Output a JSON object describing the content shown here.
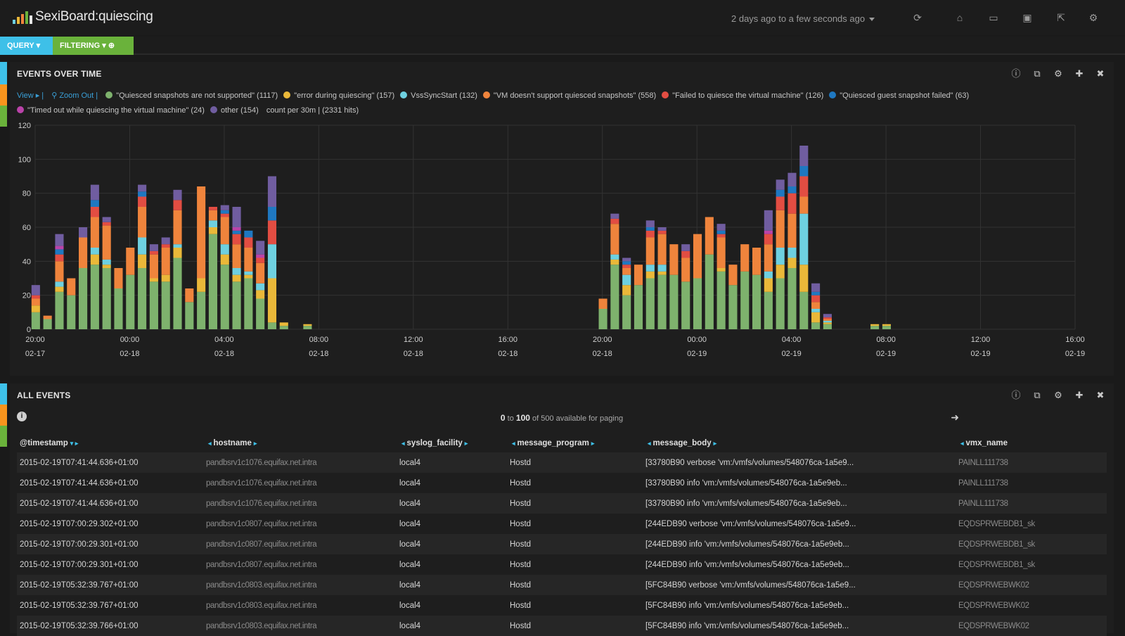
{
  "app": {
    "title": "SexiBoard:quiescing",
    "timerange": "2 days ago to a few seconds ago"
  },
  "nav_icons": [
    "refresh-icon",
    "home-icon",
    "folder-icon",
    "save-icon",
    "share-icon",
    "gear-icon"
  ],
  "pills": {
    "query": "QUERY",
    "filtering": "FILTERING"
  },
  "events_panel": {
    "title": "EVENTS OVER TIME",
    "view_link": "View ▸ |",
    "zoom_link": "Zoom Out |",
    "legend": [
      {
        "label": "\"Quiesced snapshots are not supported\" (1117)",
        "color": "#7eb26d"
      },
      {
        "label": "\"error during quiescing\" (157)",
        "color": "#eab839"
      },
      {
        "label": "VssSyncStart (132)",
        "color": "#6ed0e0"
      },
      {
        "label": "\"VM doesn't support quiesced snapshots\" (558)",
        "color": "#ef843c"
      },
      {
        "label": "\"Failed to quiesce the virtual machine\" (126)",
        "color": "#e24d42"
      },
      {
        "label": "\"Quiesced guest snapshot failed\" (63)",
        "color": "#1f78c1"
      },
      {
        "label": "\"Timed out while quiescing the virtual machine\" (24)",
        "color": "#ba43a9"
      },
      {
        "label": "other (154)",
        "color": "#705da0"
      }
    ],
    "summary": "count per 30m | (2331 hits)"
  },
  "chart_data": {
    "type": "bar",
    "stacked": true,
    "ylim": [
      0,
      120
    ],
    "yticks": [
      0,
      20,
      40,
      60,
      80,
      100,
      120
    ],
    "x_ticks": [
      {
        "time": "20:00",
        "date": "02-17"
      },
      {
        "time": "00:00",
        "date": "02-18"
      },
      {
        "time": "04:00",
        "date": "02-18"
      },
      {
        "time": "08:00",
        "date": "02-18"
      },
      {
        "time": "12:00",
        "date": "02-18"
      },
      {
        "time": "16:00",
        "date": "02-18"
      },
      {
        "time": "20:00",
        "date": "02-18"
      },
      {
        "time": "00:00",
        "date": "02-19"
      },
      {
        "time": "04:00",
        "date": "02-19"
      },
      {
        "time": "08:00",
        "date": "02-19"
      },
      {
        "time": "12:00",
        "date": "02-19"
      },
      {
        "time": "16:00",
        "date": "02-19"
      }
    ],
    "x_start": "2015-02-17T20:00",
    "x_end": "2015-02-19T16:00",
    "grid": true,
    "series_order": [
      "Quiesced snapshots are not supported",
      "error during quiescing",
      "VssSyncStart",
      "VM doesn't support quiesced snapshots",
      "Failed to quiesce the virtual machine",
      "Quiesced guest snapshot failed",
      "Timed out while quiescing the virtual machine",
      "other"
    ],
    "bars": [
      {
        "t": "2015-02-17T20:00",
        "v": [
          10,
          4,
          0,
          4,
          2,
          0,
          0,
          6
        ]
      },
      {
        "t": "2015-02-17T20:30",
        "v": [
          6,
          0,
          0,
          2,
          0,
          0,
          0,
          0
        ]
      },
      {
        "t": "2015-02-17T21:00",
        "v": [
          22,
          3,
          3,
          12,
          4,
          3,
          2,
          7
        ]
      },
      {
        "t": "2015-02-17T21:30",
        "v": [
          20,
          0,
          0,
          10,
          0,
          0,
          0,
          0
        ]
      },
      {
        "t": "2015-02-17T22:00",
        "v": [
          36,
          0,
          0,
          18,
          0,
          0,
          0,
          6
        ]
      },
      {
        "t": "2015-02-17T22:30",
        "v": [
          38,
          6,
          4,
          18,
          6,
          4,
          0,
          9
        ]
      },
      {
        "t": "2015-02-17T23:00",
        "v": [
          36,
          2,
          3,
          20,
          2,
          0,
          0,
          3
        ]
      },
      {
        "t": "2015-02-17T23:30",
        "v": [
          24,
          0,
          0,
          12,
          0,
          0,
          0,
          0
        ]
      },
      {
        "t": "2015-02-18T00:00",
        "v": [
          32,
          0,
          0,
          16,
          0,
          0,
          0,
          0
        ]
      },
      {
        "t": "2015-02-18T00:30",
        "v": [
          36,
          8,
          10,
          18,
          6,
          3,
          0,
          4
        ]
      },
      {
        "t": "2015-02-18T01:00",
        "v": [
          28,
          2,
          0,
          14,
          2,
          0,
          0,
          4
        ]
      },
      {
        "t": "2015-02-18T01:30",
        "v": [
          28,
          4,
          0,
          16,
          2,
          0,
          0,
          4
        ]
      },
      {
        "t": "2015-02-18T02:00",
        "v": [
          42,
          6,
          2,
          20,
          6,
          0,
          0,
          6
        ]
      },
      {
        "t": "2015-02-18T02:30",
        "v": [
          16,
          0,
          0,
          8,
          0,
          0,
          0,
          0
        ]
      },
      {
        "t": "2015-02-18T03:00",
        "v": [
          22,
          8,
          0,
          54,
          0,
          0,
          0,
          0
        ]
      },
      {
        "t": "2015-02-18T03:30",
        "v": [
          56,
          4,
          4,
          6,
          2,
          0,
          0,
          0
        ]
      },
      {
        "t": "2015-02-18T04:00",
        "v": [
          38,
          6,
          6,
          16,
          2,
          2,
          0,
          3
        ]
      },
      {
        "t": "2015-02-18T04:30",
        "v": [
          28,
          4,
          4,
          14,
          6,
          2,
          2,
          12
        ]
      },
      {
        "t": "2015-02-18T05:00",
        "v": [
          30,
          2,
          2,
          14,
          6,
          4,
          0,
          0
        ]
      },
      {
        "t": "2015-02-18T05:30",
        "v": [
          18,
          5,
          4,
          12,
          3,
          0,
          2,
          8
        ]
      },
      {
        "t": "2015-02-18T06:00",
        "v": [
          4,
          26,
          20,
          0,
          14,
          8,
          0,
          18
        ]
      },
      {
        "t": "2015-02-18T06:30",
        "v": [
          2,
          2,
          0,
          0,
          0,
          0,
          0,
          0
        ]
      },
      {
        "t": "2015-02-18T07:30",
        "v": [
          2,
          1,
          0,
          0,
          0,
          0,
          0,
          0
        ]
      },
      {
        "t": "2015-02-18T20:00",
        "v": [
          12,
          0,
          0,
          6,
          0,
          0,
          0,
          0
        ]
      },
      {
        "t": "2015-02-18T20:30",
        "v": [
          38,
          3,
          3,
          18,
          3,
          0,
          0,
          3
        ]
      },
      {
        "t": "2015-02-18T21:00",
        "v": [
          20,
          6,
          6,
          4,
          2,
          2,
          0,
          2
        ]
      },
      {
        "t": "2015-02-18T21:30",
        "v": [
          26,
          0,
          0,
          12,
          0,
          0,
          0,
          0
        ]
      },
      {
        "t": "2015-02-18T22:00",
        "v": [
          30,
          4,
          4,
          16,
          4,
          2,
          0,
          4
        ]
      },
      {
        "t": "2015-02-18T22:30",
        "v": [
          32,
          2,
          4,
          18,
          2,
          0,
          0,
          2
        ]
      },
      {
        "t": "2015-02-18T23:00",
        "v": [
          32,
          0,
          0,
          18,
          0,
          0,
          0,
          0
        ]
      },
      {
        "t": "2015-02-18T23:30",
        "v": [
          28,
          0,
          0,
          14,
          4,
          0,
          0,
          4
        ]
      },
      {
        "t": "2015-02-19T00:00",
        "v": [
          30,
          0,
          0,
          26,
          0,
          0,
          0,
          0
        ]
      },
      {
        "t": "2015-02-19T00:30",
        "v": [
          44,
          0,
          0,
          22,
          0,
          0,
          0,
          0
        ]
      },
      {
        "t": "2015-02-19T01:00",
        "v": [
          34,
          2,
          0,
          18,
          2,
          2,
          0,
          4
        ]
      },
      {
        "t": "2015-02-19T01:30",
        "v": [
          26,
          0,
          0,
          12,
          0,
          0,
          0,
          0
        ]
      },
      {
        "t": "2015-02-19T02:00",
        "v": [
          34,
          0,
          0,
          16,
          0,
          0,
          0,
          0
        ]
      },
      {
        "t": "2015-02-19T02:30",
        "v": [
          32,
          0,
          0,
          16,
          0,
          0,
          0,
          0
        ]
      },
      {
        "t": "2015-02-19T03:00",
        "v": [
          22,
          8,
          4,
          16,
          6,
          0,
          2,
          12
        ]
      },
      {
        "t": "2015-02-19T03:30",
        "v": [
          30,
          8,
          10,
          22,
          8,
          4,
          0,
          6
        ]
      },
      {
        "t": "2015-02-19T04:00",
        "v": [
          36,
          6,
          6,
          20,
          12,
          4,
          0,
          8
        ]
      },
      {
        "t": "2015-02-19T04:30",
        "v": [
          22,
          16,
          30,
          10,
          12,
          6,
          0,
          12
        ]
      },
      {
        "t": "2015-02-19T05:00",
        "v": [
          4,
          6,
          2,
          4,
          4,
          2,
          0,
          5
        ]
      },
      {
        "t": "2015-02-19T05:30",
        "v": [
          3,
          1,
          1,
          1,
          1,
          0,
          0,
          2
        ]
      },
      {
        "t": "2015-02-19T07:30",
        "v": [
          2,
          1,
          0,
          0,
          0,
          0,
          0,
          0
        ]
      },
      {
        "t": "2015-02-19T08:00",
        "v": [
          2,
          1,
          0,
          0,
          0,
          0,
          0,
          0
        ]
      }
    ]
  },
  "all_events": {
    "title": "ALL EVENTS",
    "paging": {
      "from": "0",
      "to_word": "to",
      "to": "100",
      "suffix": "of 500 available for paging"
    },
    "columns": [
      "@timestamp",
      "hostname",
      "syslog_facility",
      "message_program",
      "message_body",
      "vmx_name"
    ],
    "rows": [
      [
        "2015-02-19T07:41:44.636+01:00",
        "pandbsrv1c1076.equifax.net.intra",
        "local4",
        "Hostd",
        "[33780B90 verbose 'vm:/vmfs/volumes/548076ca-1a5e9...",
        "PAINLL111738"
      ],
      [
        "2015-02-19T07:41:44.636+01:00",
        "pandbsrv1c1076.equifax.net.intra",
        "local4",
        "Hostd",
        "[33780B90 info 'vm:/vmfs/volumes/548076ca-1a5e9eb...",
        "PAINLL111738"
      ],
      [
        "2015-02-19T07:41:44.636+01:00",
        "pandbsrv1c1076.equifax.net.intra",
        "local4",
        "Hostd",
        "[33780B90 info 'vm:/vmfs/volumes/548076ca-1a5e9eb...",
        "PAINLL111738"
      ],
      [
        "2015-02-19T07:00:29.302+01:00",
        "pandbsrv1c0807.equifax.net.intra",
        "local4",
        "Hostd",
        "[244EDB90 verbose 'vm:/vmfs/volumes/548076ca-1a5e9...",
        "EQDSPRWEBDB1_sk"
      ],
      [
        "2015-02-19T07:00:29.301+01:00",
        "pandbsrv1c0807.equifax.net.intra",
        "local4",
        "Hostd",
        "[244EDB90 info 'vm:/vmfs/volumes/548076ca-1a5e9eb...",
        "EQDSPRWEBDB1_sk"
      ],
      [
        "2015-02-19T07:00:29.301+01:00",
        "pandbsrv1c0807.equifax.net.intra",
        "local4",
        "Hostd",
        "[244EDB90 info 'vm:/vmfs/volumes/548076ca-1a5e9eb...",
        "EQDSPRWEBDB1_sk"
      ],
      [
        "2015-02-19T05:32:39.767+01:00",
        "pandbsrv1c0803.equifax.net.intra",
        "local4",
        "Hostd",
        "[5FC84B90 verbose 'vm:/vmfs/volumes/548076ca-1a5e9...",
        "EQDSPRWEBWK02"
      ],
      [
        "2015-02-19T05:32:39.767+01:00",
        "pandbsrv1c0803.equifax.net.intra",
        "local4",
        "Hostd",
        "[5FC84B90 info 'vm:/vmfs/volumes/548076ca-1a5e9eb...",
        "EQDSPRWEBWK02"
      ],
      [
        "2015-02-19T05:32:39.766+01:00",
        "pandbsrv1c0803.equifax.net.intra",
        "local4",
        "Hostd",
        "[5FC84B90 info 'vm:/vmfs/volumes/548076ca-1a5e9eb...",
        "EQDSPRWEBWK02"
      ]
    ]
  },
  "colors": {
    "accent_blue": "#3ec0e8",
    "accent_green": "#6ab23b",
    "accent_orange": "#f7941d"
  }
}
